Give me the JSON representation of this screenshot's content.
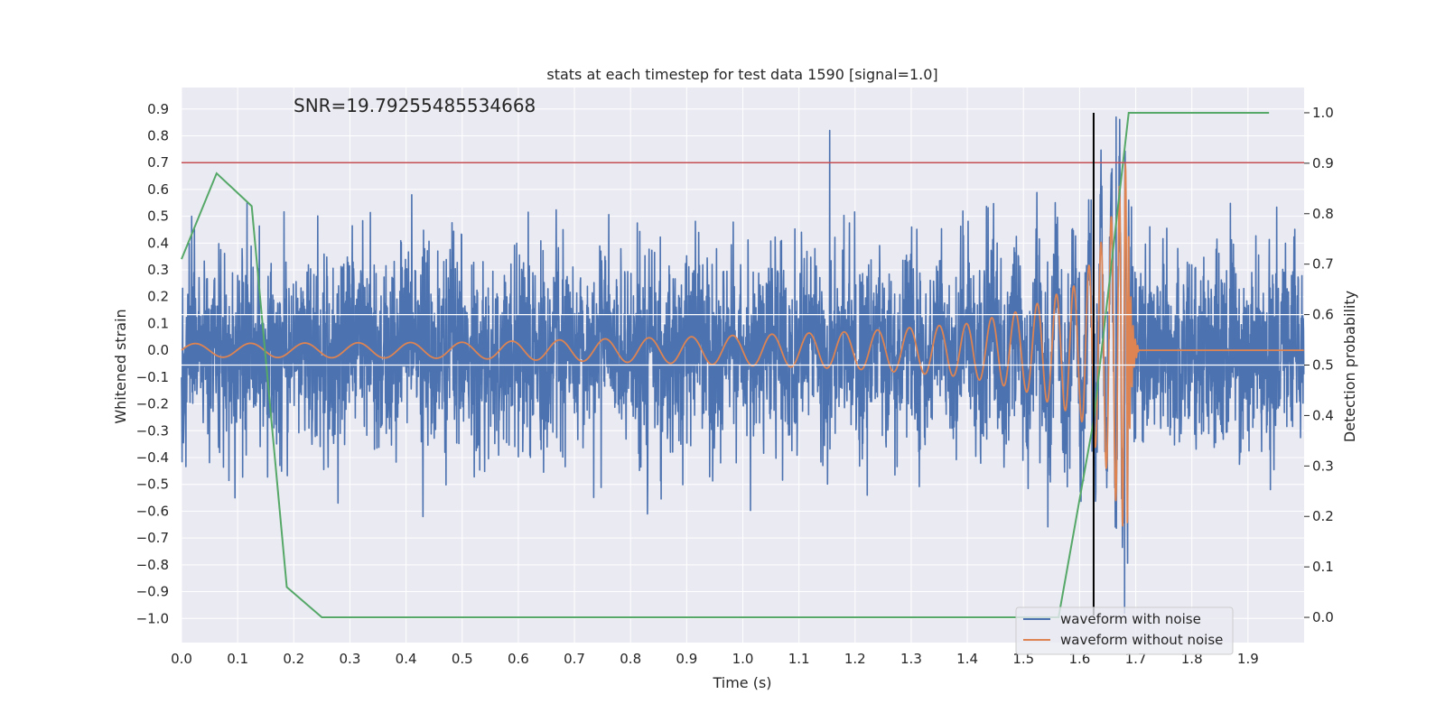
{
  "chart_data": {
    "type": "line",
    "title": "stats at each timestep for test data 1590 [signal=1.0]",
    "xlabel": "Time (s)",
    "ylabel_left": "Whitened strain",
    "ylabel_right": "Detection probability",
    "annotation": "SNR=19.79255485534668",
    "xlim": [
      0.0,
      2.0
    ],
    "ylim_left": [
      -1.09,
      0.98
    ],
    "ylim_right": [
      -0.05,
      1.05
    ],
    "x_ticks": [
      "0.0",
      "0.1",
      "0.2",
      "0.3",
      "0.4",
      "0.5",
      "0.6",
      "0.7",
      "0.8",
      "0.9",
      "1.0",
      "1.1",
      "1.2",
      "1.3",
      "1.4",
      "1.5",
      "1.6",
      "1.7",
      "1.8",
      "1.9"
    ],
    "y_left_ticks": [
      "0.9",
      "0.8",
      "0.7",
      "0.6",
      "0.5",
      "0.4",
      "0.3",
      "0.2",
      "0.1",
      "0.0",
      "−0.1",
      "−0.2",
      "−0.3",
      "−0.4",
      "−0.5",
      "−0.6",
      "−0.7",
      "−0.8",
      "−0.9",
      "−1.0"
    ],
    "y_right_ticks": [
      "1.0",
      "0.9",
      "0.8",
      "0.7",
      "0.6",
      "0.5",
      "0.4",
      "0.3",
      "0.2",
      "0.1",
      "0.0"
    ],
    "grid": true,
    "legend_position": "bottom-right",
    "threshold_line": {
      "axis": "left",
      "y": 0.7,
      "color": "#c44e52"
    },
    "vertical_line": {
      "x": 1.625,
      "color": "#000000"
    },
    "series": [
      {
        "name": "waveform with noise",
        "axis": "left",
        "color": "#4c72b0",
        "kind": "noise",
        "sample_rate": 2048,
        "noise_std": 0.18,
        "notable_peaks": [
          [
            0.095,
            -0.55
          ],
          [
            0.41,
            0.58
          ],
          [
            0.43,
            -0.62
          ],
          [
            0.83,
            -0.61
          ],
          [
            1.155,
            0.82
          ],
          [
            1.665,
            0.87
          ],
          [
            1.68,
            -0.98
          ]
        ]
      },
      {
        "name": "waveform without noise",
        "axis": "left",
        "color": "#dd8452",
        "kind": "chirp",
        "merger_time": 1.685,
        "ringdown_end": 1.705,
        "amplitude_envelope": [
          [
            0.0,
            0.025
          ],
          [
            0.5,
            0.03
          ],
          [
            0.9,
            0.05
          ],
          [
            1.2,
            0.07
          ],
          [
            1.4,
            0.1
          ],
          [
            1.5,
            0.15
          ],
          [
            1.6,
            0.25
          ],
          [
            1.65,
            0.45
          ],
          [
            1.685,
            0.72
          ]
        ],
        "frequency_envelope": [
          [
            0.0,
            10
          ],
          [
            0.5,
            11
          ],
          [
            1.0,
            14
          ],
          [
            1.3,
            18
          ],
          [
            1.5,
            25
          ],
          [
            1.6,
            35
          ],
          [
            1.66,
            60
          ],
          [
            1.685,
            110
          ]
        ]
      },
      {
        "name": "detection probability",
        "axis": "right",
        "color": "#55a868",
        "kind": "polyline",
        "x": [
          0.0,
          0.0625,
          0.125,
          0.1875,
          0.25,
          0.3125,
          1.5,
          1.5625,
          1.625,
          1.6875,
          1.75,
          1.9375
        ],
        "y": [
          0.71,
          0.88,
          0.815,
          0.06,
          0.0,
          0.0,
          0.0,
          0.0,
          0.39,
          1.0,
          1.0,
          1.0
        ]
      }
    ],
    "legend": [
      "waveform with noise",
      "waveform without noise"
    ]
  },
  "colors": {
    "background": "#eaeaf2",
    "grid": "#ffffff",
    "text": "#262626"
  }
}
